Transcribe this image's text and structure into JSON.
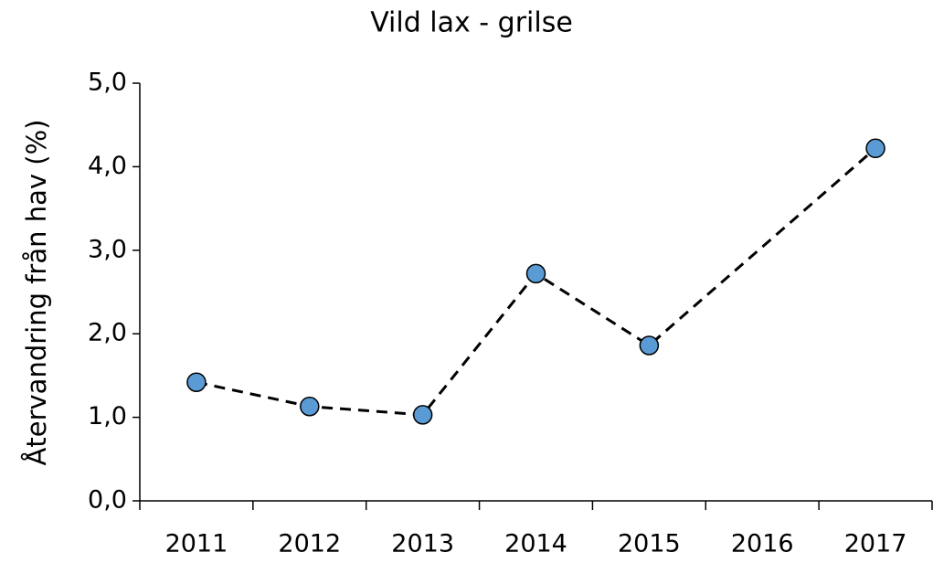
{
  "chart_data": {
    "type": "line",
    "title": "Vild lax - grilse",
    "ylabel": "Återvandring från hav (%)",
    "x": [
      2011,
      2012,
      2013,
      2014,
      2015,
      2017
    ],
    "series": [
      {
        "name": "Vild lax - grilse",
        "color": "#5b9bd5",
        "values": [
          1.42,
          1.13,
          1.03,
          2.72,
          1.86,
          4.22
        ]
      }
    ],
    "xlim": [
      2010.5,
      2017.5
    ],
    "xticks": [
      2011,
      2012,
      2013,
      2014,
      2015,
      2016,
      2017
    ],
    "ylim": [
      0,
      5
    ],
    "yticks": [
      {
        "value": 0,
        "label": "0,0"
      },
      {
        "value": 1,
        "label": "1,0"
      },
      {
        "value": 2,
        "label": "2,0"
      },
      {
        "value": 3,
        "label": "3,0"
      },
      {
        "value": 4,
        "label": "4,0"
      },
      {
        "value": 5,
        "label": "5,0"
      }
    ],
    "grid": false
  }
}
